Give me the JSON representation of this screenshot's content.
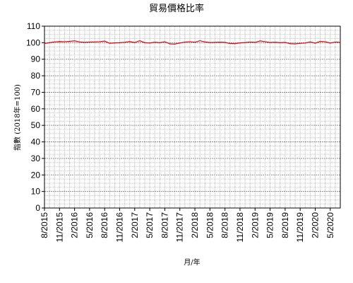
{
  "chart_data": {
    "type": "line",
    "title": "貿易價格比率",
    "xlabel": "月/年",
    "ylabel": "指數 (2018年=100)",
    "ylim": [
      0,
      110
    ],
    "yticks": [
      0,
      10,
      20,
      30,
      40,
      50,
      60,
      70,
      80,
      90,
      100,
      110
    ],
    "grid": true,
    "xticks": [
      "8/2015",
      "11/2015",
      "2/2016",
      "5/2016",
      "8/2016",
      "11/2016",
      "2/2017",
      "5/2017",
      "8/2017",
      "11/2017",
      "2/2018",
      "5/2018",
      "8/2018",
      "11/2018",
      "2/2019",
      "5/2019",
      "8/2019",
      "11/2019",
      "2/2020",
      "5/2020"
    ],
    "series": [
      {
        "color": "#e8000b",
        "x": [
          "8/2015",
          "9/2015",
          "10/2015",
          "11/2015",
          "12/2015",
          "1/2016",
          "2/2016",
          "3/2016",
          "4/2016",
          "5/2016",
          "6/2016",
          "7/2016",
          "8/2016",
          "9/2016",
          "10/2016",
          "11/2016",
          "12/2016",
          "1/2017",
          "2/2017",
          "3/2017",
          "4/2017",
          "5/2017",
          "6/2017",
          "7/2017",
          "8/2017",
          "9/2017",
          "10/2017",
          "11/2017",
          "12/2017",
          "1/2018",
          "2/2018",
          "3/2018",
          "4/2018",
          "5/2018",
          "6/2018",
          "7/2018",
          "8/2018",
          "9/2018",
          "10/2018",
          "11/2018",
          "12/2018",
          "1/2019",
          "2/2019",
          "3/2019",
          "4/2019",
          "5/2019",
          "6/2019",
          "7/2019",
          "8/2019",
          "9/2019",
          "10/2019",
          "11/2019",
          "12/2019",
          "1/2020",
          "2/2020",
          "3/2020",
          "4/2020",
          "5/2020",
          "6/2020",
          "7/2020"
        ],
        "values": [
          99.5,
          100.0,
          100.5,
          100.7,
          100.6,
          100.8,
          101.1,
          100.5,
          100.2,
          100.4,
          100.5,
          100.6,
          101.0,
          99.6,
          99.9,
          100.0,
          100.3,
          100.7,
          100.1,
          101.2,
          100.0,
          99.8,
          100.3,
          100.0,
          100.6,
          99.3,
          99.2,
          99.8,
          100.4,
          100.6,
          100.3,
          101.2,
          100.5,
          100.1,
          100.2,
          100.3,
          100.2,
          99.5,
          99.4,
          99.9,
          100.1,
          100.4,
          100.2,
          101.1,
          100.6,
          100.1,
          100.3,
          100.0,
          100.2,
          99.4,
          99.3,
          99.6,
          99.8,
          100.5,
          99.7,
          100.8,
          100.6,
          99.8,
          100.4,
          100.2
        ]
      }
    ]
  }
}
